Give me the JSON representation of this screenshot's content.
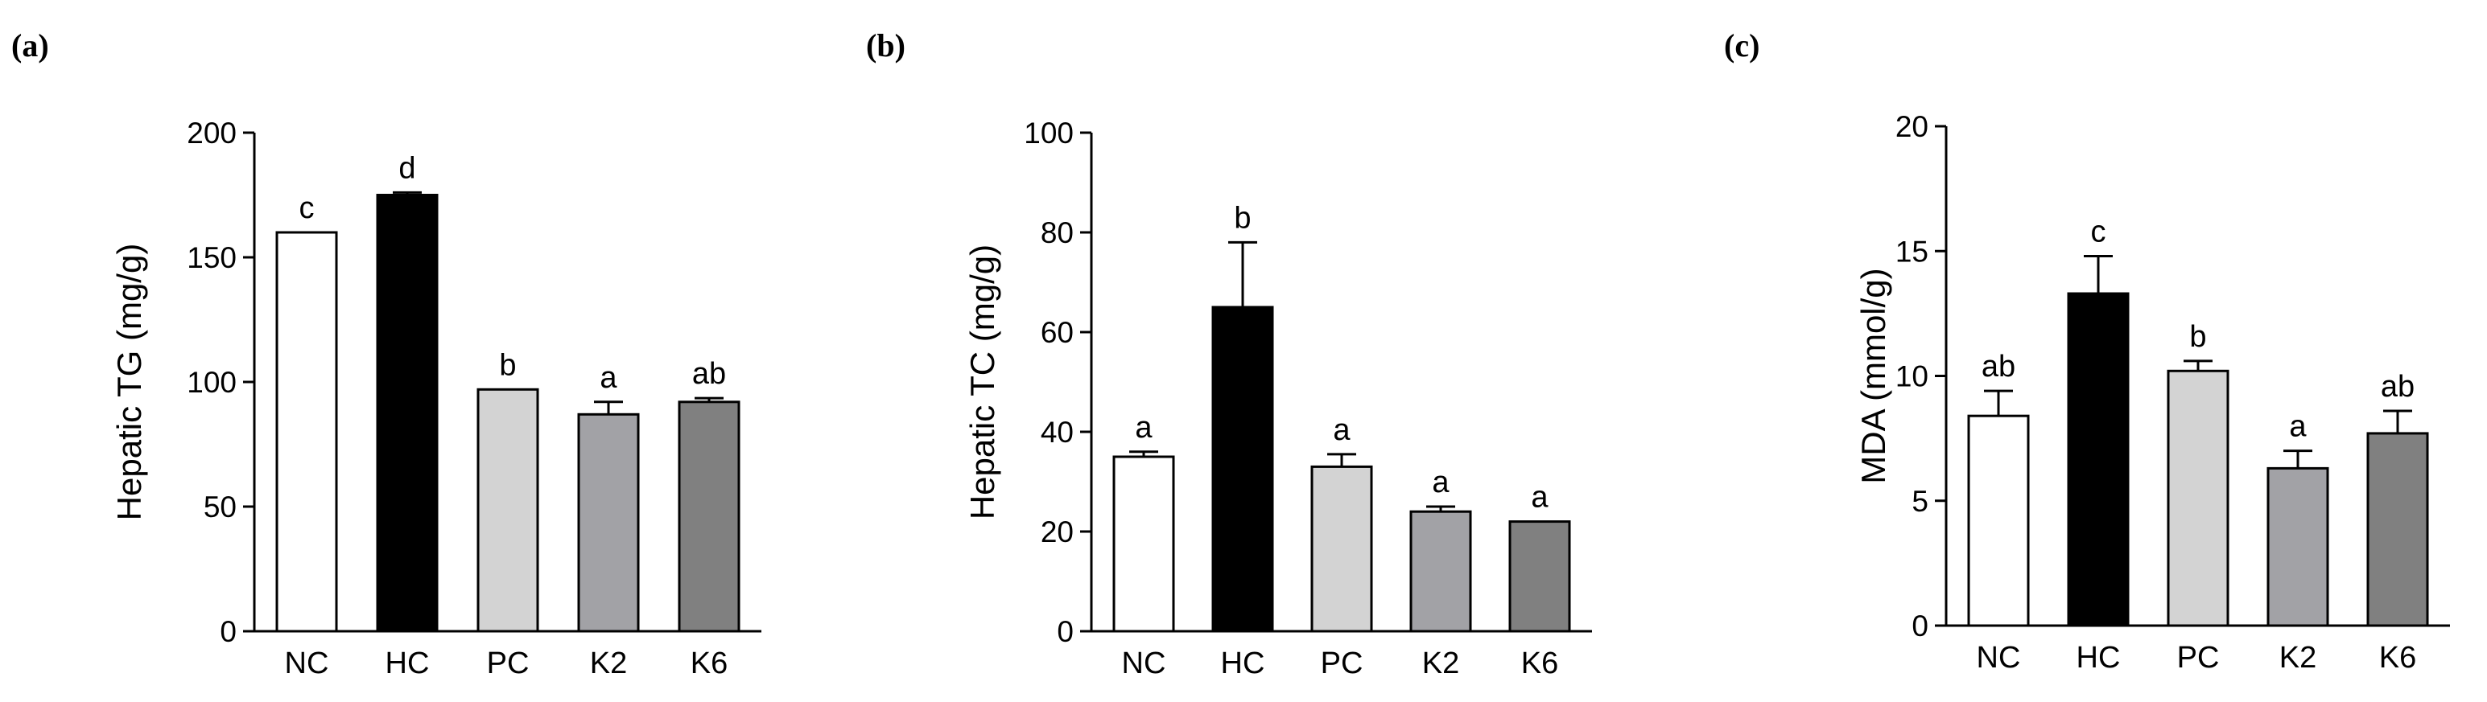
{
  "chart_data": [
    {
      "type": "bar",
      "panel_label": "(a)",
      "categories": [
        "NC",
        "HC",
        "PC",
        "K2",
        "K6"
      ],
      "values": [
        160,
        175,
        97,
        87,
        92
      ],
      "errors": [
        0,
        1,
        0,
        5,
        1.5
      ],
      "significance": [
        "c",
        "d",
        "b",
        "a",
        "ab"
      ],
      "ylabel": "Hepatic TG (mg/g)",
      "ylim": [
        0,
        200
      ],
      "yticks": [
        0,
        50,
        100,
        150,
        200
      ],
      "bar_colors": [
        "#ffffff",
        "#000000",
        "#d3d3d3",
        "#a2a2a6",
        "#808080"
      ],
      "grid": false
    },
    {
      "type": "bar",
      "panel_label": "(b)",
      "categories": [
        "NC",
        "HC",
        "PC",
        "K2",
        "K6"
      ],
      "values": [
        35,
        65,
        33,
        24,
        22
      ],
      "errors": [
        1,
        13,
        2.5,
        1,
        0
      ],
      "significance": [
        "a",
        "b",
        "a",
        "a",
        "a"
      ],
      "ylabel": "Hepatic TC (mg/g)",
      "ylim": [
        0,
        100
      ],
      "yticks": [
        0,
        20,
        40,
        60,
        80,
        100
      ],
      "bar_colors": [
        "#ffffff",
        "#000000",
        "#d3d3d3",
        "#a2a2a6",
        "#808080"
      ],
      "grid": false
    },
    {
      "type": "bar",
      "panel_label": "(c)",
      "categories": [
        "NC",
        "HC",
        "PC",
        "K2",
        "K6"
      ],
      "values": [
        8.4,
        13.3,
        10.2,
        6.3,
        7.7
      ],
      "errors": [
        1.0,
        1.5,
        0.4,
        0.7,
        0.9
      ],
      "significance": [
        "ab",
        "c",
        "b",
        "a",
        "ab"
      ],
      "ylabel": "MDA (mmol/g)",
      "ylim": [
        0,
        20
      ],
      "yticks": [
        0,
        5,
        10,
        15,
        20
      ],
      "bar_colors": [
        "#ffffff",
        "#000000",
        "#d3d3d3",
        "#a2a2a6",
        "#808080"
      ],
      "grid": false
    }
  ]
}
